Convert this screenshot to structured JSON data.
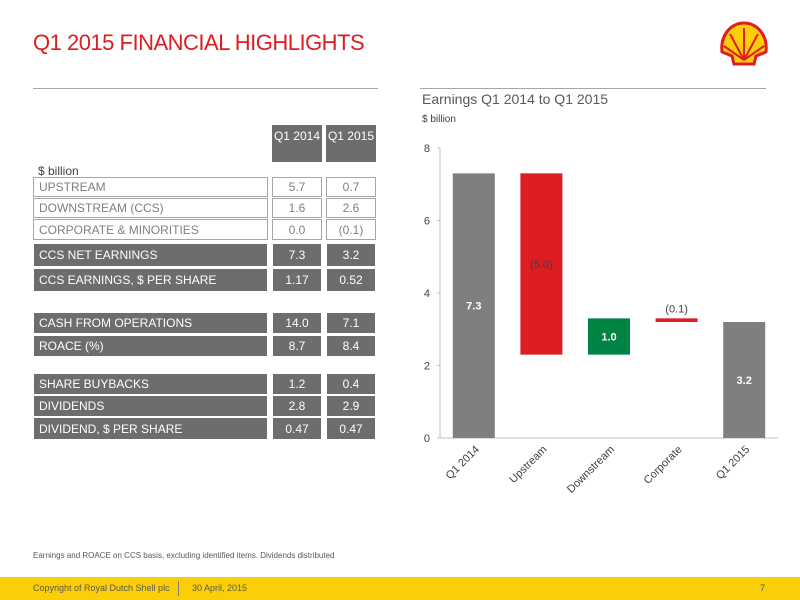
{
  "header": {
    "title": "Q1 2015 FINANCIAL HIGHLIGHTS"
  },
  "table": {
    "unit": "$ billion",
    "columns": [
      "Q1 2014",
      "Q1 2015"
    ],
    "rows": [
      [
        "UPSTREAM",
        "5.7",
        "0.7"
      ],
      [
        "DOWNSTREAM (CCS)",
        "1.6",
        "2.6"
      ],
      [
        "CORPORATE & MINORITIES",
        "0.0",
        "(0.1)"
      ],
      [
        "CCS NET EARNINGS",
        "7.3",
        "3.2"
      ],
      [
        "CCS EARNINGS, $ PER SHARE",
        "1.17",
        "0.52"
      ],
      [
        "CASH FROM OPERATIONS",
        "14.0",
        "7.1"
      ],
      [
        "ROACE (%)",
        "8.7",
        "8.4"
      ],
      [
        "SHARE BUYBACKS",
        "1.2",
        "0.4"
      ],
      [
        "DIVIDENDS",
        "2.8",
        "2.9"
      ],
      [
        "DIVIDEND, $ PER SHARE",
        "0.47",
        "0.47"
      ]
    ]
  },
  "chart_data": {
    "type": "waterfall",
    "title": "Earnings Q1 2014 to Q1 2015",
    "subtitle": "$ billion",
    "categories": [
      "Q1 2014",
      "Upstream",
      "Downstream",
      "Corporate",
      "Q1 2015"
    ],
    "values": [
      7.3,
      -5.0,
      1.0,
      -0.1,
      3.2
    ],
    "value_labels": [
      "7.3",
      "(5.0)",
      "1.0",
      "(0.1)",
      "3.2"
    ],
    "measures": [
      "absolute",
      "relative",
      "relative",
      "relative",
      "total"
    ],
    "colors": [
      "#7f7f7f",
      "#dd1d21",
      "#008443",
      "#dd1d21",
      "#7f7f7f"
    ],
    "ylim": [
      0,
      8
    ],
    "yticks": [
      0,
      2,
      4,
      6,
      8
    ]
  },
  "footnote": "Earnings and ROACE on CCS basis, excluding identified items. Dividends distributed",
  "footer": {
    "copyright": "Copyright of Royal Dutch Shell plc",
    "date": "30 April, 2015",
    "page": "7"
  }
}
